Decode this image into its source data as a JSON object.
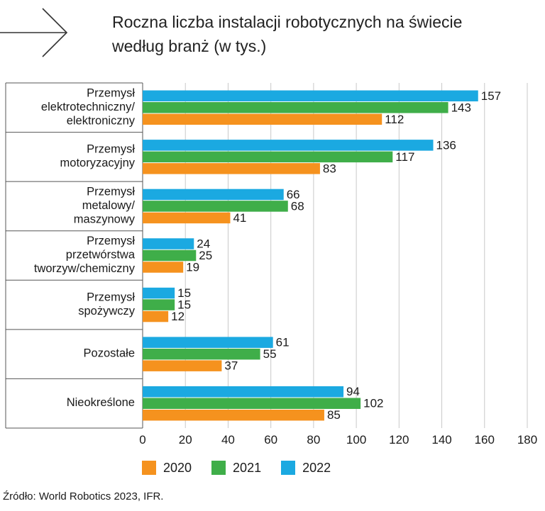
{
  "title_lines": [
    "Roczna liczba instalacji robotycznych na świecie",
    "według branż (w tys.)"
  ],
  "source": "Źródło: World Robotics 2023, IFR.",
  "colors": {
    "2020": "#f5921e",
    "2021": "#3fae49",
    "2022": "#1ba9e1",
    "grid": "#c8c8c8",
    "axis": "#555555"
  },
  "icons": {
    "header": "arrow-right-icon"
  },
  "chart_data": {
    "type": "bar",
    "orientation": "horizontal",
    "title": "Roczna liczba instalacji robotycznych na świecie według branż (w tys.)",
    "categories": [
      [
        "Przemysł",
        "elektrotechniczny/",
        "elektroniczny"
      ],
      [
        "Przemysł",
        "motoryzacyjny"
      ],
      [
        "Przemysł",
        "metalowy/",
        "maszynowy"
      ],
      [
        "Przemysł",
        "przetwórstwa",
        "tworzyw/chemiczny"
      ],
      [
        "Przemysł",
        "spożywczy"
      ],
      [
        "Pozostałe"
      ],
      [
        "Nieokreślone"
      ]
    ],
    "series": [
      {
        "name": "2022",
        "color": "#1ba9e1",
        "values": [
          157,
          136,
          66,
          24,
          15,
          61,
          94
        ]
      },
      {
        "name": "2021",
        "color": "#3fae49",
        "values": [
          143,
          117,
          68,
          25,
          15,
          55,
          102
        ]
      },
      {
        "name": "2020",
        "color": "#f5921e",
        "values": [
          112,
          83,
          41,
          19,
          12,
          37,
          85
        ]
      }
    ],
    "legend_order": [
      "2020",
      "2021",
      "2022"
    ],
    "xlim": [
      0,
      180
    ],
    "xticks": [
      0,
      20,
      40,
      60,
      80,
      100,
      120,
      140,
      160,
      180
    ],
    "grid": true,
    "legend_position": "bottom"
  }
}
